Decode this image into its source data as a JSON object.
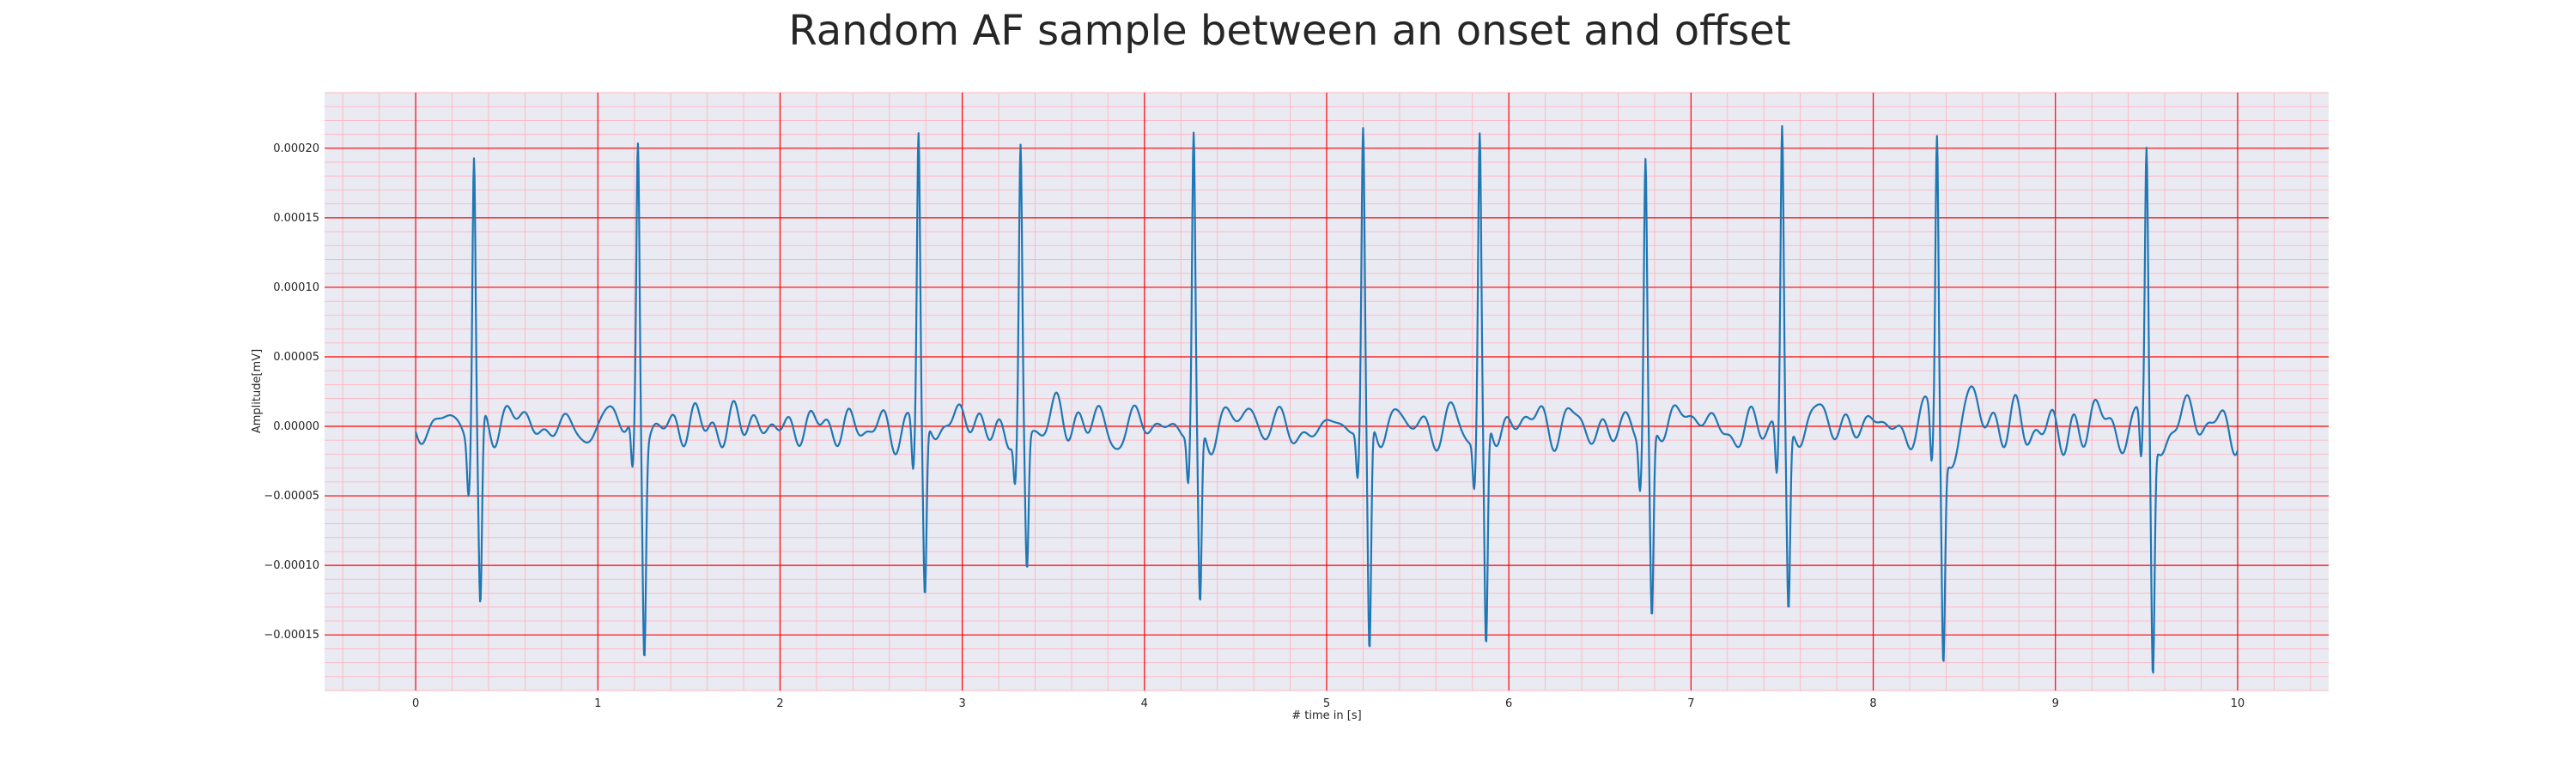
{
  "chart_data": {
    "type": "line",
    "title": "Random AF sample between an onset and offset",
    "xlabel": "# time in [s]",
    "ylabel": "Amplitude[mV]",
    "xlim": [
      -0.5,
      10.5
    ],
    "ylim": [
      -0.00019,
      0.00024
    ],
    "x_ticks": [
      0,
      1,
      2,
      3,
      4,
      5,
      6,
      7,
      8,
      9,
      10
    ],
    "x_tick_labels": [
      "0",
      "1",
      "2",
      "3",
      "4",
      "5",
      "6",
      "7",
      "8",
      "9",
      "10"
    ],
    "y_ticks": [
      0.0002,
      0.00015,
      0.0001,
      5e-05,
      0.0,
      -5e-05,
      -0.0001,
      -0.00015
    ],
    "y_tick_labels": [
      "0.00020",
      "0.00015",
      "0.00010",
      "0.00005",
      "0.00000",
      "−0.00005",
      "−0.00010",
      "−0.00015"
    ],
    "grid": true,
    "minor_grid": true,
    "series": [
      {
        "color": "#1f77b4",
        "x_start": 0,
        "x_end": 10,
        "beats": [
          {
            "t": 0.32,
            "peak": 0.00021,
            "trough": -0.00013
          },
          {
            "t": 1.22,
            "peak": 0.000205,
            "trough": -0.000152
          },
          {
            "t": 2.76,
            "peak": 0.00021,
            "trough": -0.000125
          },
          {
            "t": 3.32,
            "peak": 0.0002,
            "trough": -0.0001
          },
          {
            "t": 4.27,
            "peak": 0.00021,
            "trough": -0.00013
          },
          {
            "t": 5.2,
            "peak": 0.00021,
            "trough": -0.000168
          },
          {
            "t": 5.84,
            "peak": 0.00021,
            "trough": -0.000165
          },
          {
            "t": 6.75,
            "peak": 0.0002,
            "trough": -0.000135
          },
          {
            "t": 7.5,
            "peak": 0.00022,
            "trough": -0.00013
          },
          {
            "t": 8.35,
            "peak": 0.000215,
            "trough": -0.00015
          },
          {
            "t": 9.5,
            "peak": 0.000193,
            "trough": -0.000172
          }
        ]
      }
    ]
  },
  "colors": {
    "plot_background": "#eaeaf2",
    "major_grid": "#ff0000",
    "minor_grid": "#ffb6c1",
    "line": "#1f77b4",
    "text": "#262626"
  }
}
